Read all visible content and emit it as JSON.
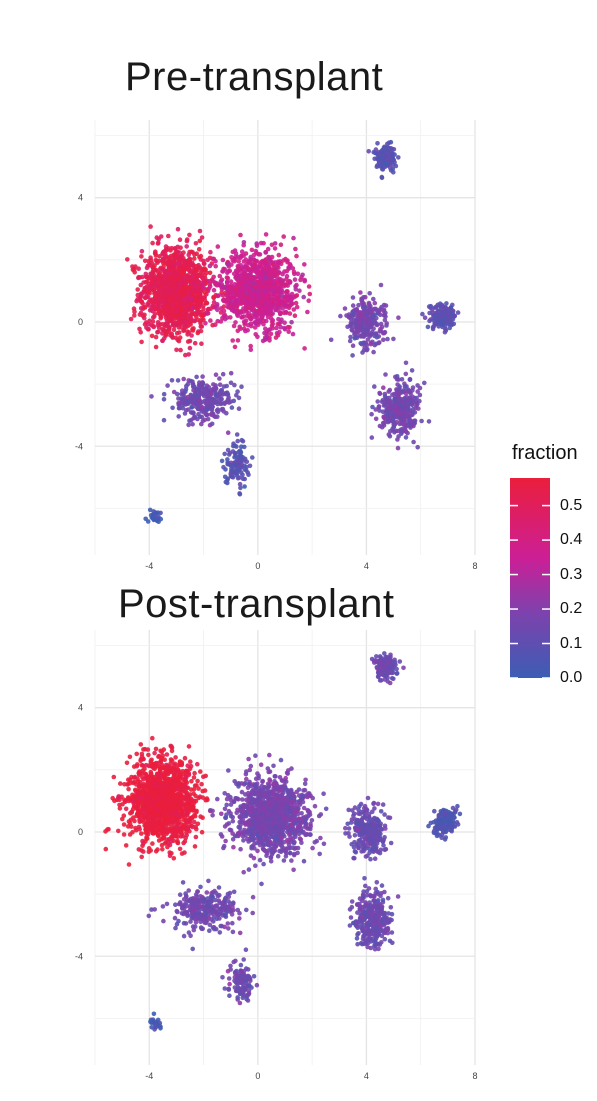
{
  "legend": {
    "title": "fraction",
    "labels": [
      "0.5",
      "0.4",
      "0.3",
      "0.2",
      "0.1",
      "0.0"
    ],
    "values": [
      0.5,
      0.4,
      0.3,
      0.2,
      0.1,
      0.0
    ],
    "range": [
      0.0,
      0.58
    ],
    "colors": [
      "#3c5db4",
      "#7e42ad",
      "#cc1f96",
      "#ea1e3c"
    ]
  },
  "chart_data": [
    {
      "type": "scatter",
      "title": "Pre-transplant",
      "xlabel": "",
      "ylabel": "",
      "xlim": [
        -6,
        8
      ],
      "ylim": [
        -7.5,
        6.5
      ],
      "xticks": [
        "-4",
        "0",
        "4",
        "8"
      ],
      "yticks": [
        "4",
        "0",
        "-4"
      ],
      "xtick_values": [
        -4,
        0,
        4,
        8
      ],
      "ytick_values": [
        4,
        0,
        -4
      ],
      "grid": true,
      "clusters": [
        {
          "x": -3.0,
          "y": 1.0,
          "fraction": 0.52
        },
        {
          "x": 0.0,
          "y": 1.0,
          "fraction": 0.36
        },
        {
          "x": 4.0,
          "y": 0.0,
          "fraction": 0.16
        },
        {
          "x": 6.8,
          "y": 0.2,
          "fraction": 0.1
        },
        {
          "x": 5.2,
          "y": -2.8,
          "fraction": 0.16
        },
        {
          "x": -2.0,
          "y": -2.5,
          "fraction": 0.15
        },
        {
          "x": -0.8,
          "y": -4.6,
          "fraction": 0.08
        },
        {
          "x": 4.7,
          "y": 5.3,
          "fraction": 0.08
        },
        {
          "x": -3.8,
          "y": -6.3,
          "fraction": 0.02
        }
      ]
    },
    {
      "type": "scatter",
      "title": "Post-transplant",
      "xlabel": "",
      "ylabel": "",
      "xlim": [
        -6,
        8
      ],
      "ylim": [
        -7.5,
        6.5
      ],
      "xticks": [
        "-4",
        "0",
        "4",
        "8"
      ],
      "yticks": [
        "4",
        "0",
        "-4"
      ],
      "xtick_values": [
        -4,
        0,
        4,
        8
      ],
      "ytick_values": [
        4,
        0,
        -4
      ],
      "grid": true,
      "clusters": [
        {
          "x": -3.5,
          "y": 1.0,
          "fraction": 0.58
        },
        {
          "x": 0.5,
          "y": 0.5,
          "fraction": 0.17
        },
        {
          "x": 4.0,
          "y": 0.0,
          "fraction": 0.13
        },
        {
          "x": 6.9,
          "y": 0.3,
          "fraction": 0.06
        },
        {
          "x": 4.2,
          "y": -2.8,
          "fraction": 0.14
        },
        {
          "x": -2.0,
          "y": -2.5,
          "fraction": 0.15
        },
        {
          "x": -0.6,
          "y": -4.8,
          "fraction": 0.14
        },
        {
          "x": 4.7,
          "y": 5.3,
          "fraction": 0.14
        },
        {
          "x": -3.8,
          "y": -6.2,
          "fraction": 0.04
        }
      ]
    }
  ]
}
